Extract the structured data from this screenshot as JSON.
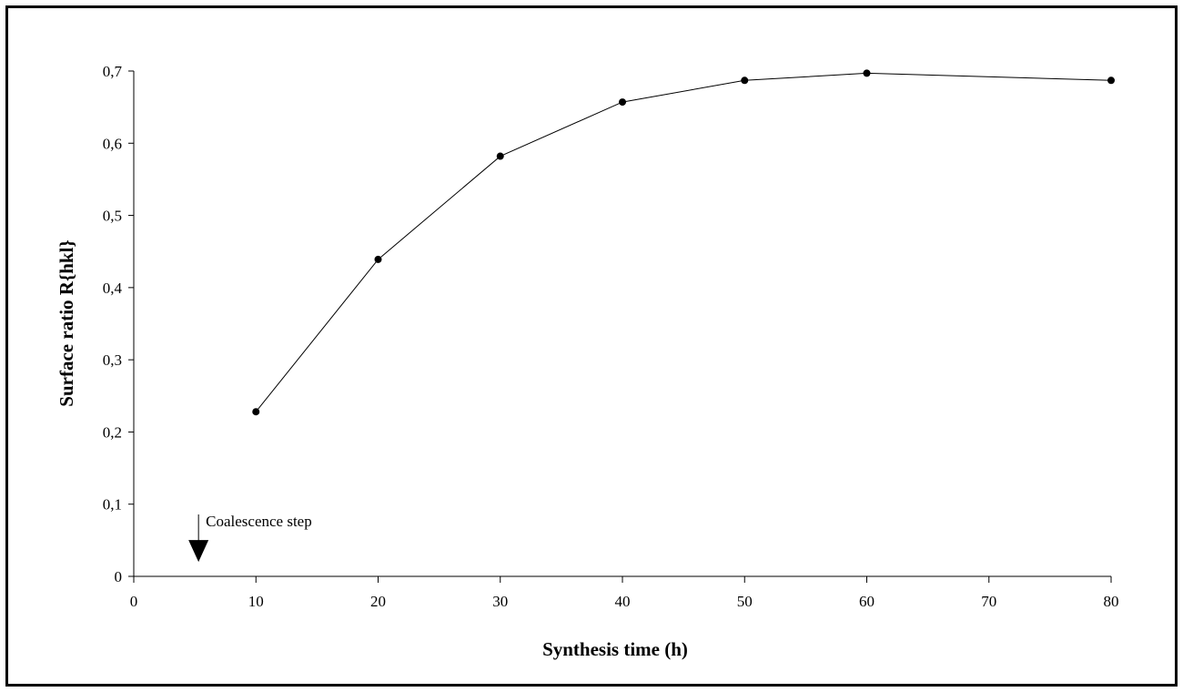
{
  "chart_data": {
    "type": "line",
    "x": [
      10,
      20,
      30,
      40,
      50,
      60,
      80
    ],
    "series": [
      {
        "values": [
          0.228,
          0.439,
          0.582,
          0.657,
          0.687,
          0.697,
          0.687
        ]
      }
    ],
    "x_ticks": [
      0,
      10,
      20,
      30,
      40,
      50,
      60,
      70,
      80
    ],
    "x_tick_labels": [
      "0",
      "10",
      "20",
      "30",
      "40",
      "50",
      "60",
      "70",
      "80"
    ],
    "y_ticks": [
      0,
      0.1,
      0.2,
      0.3,
      0.4,
      0.5,
      0.6,
      0.7
    ],
    "y_tick_labels": [
      "0",
      "0,1",
      "0,2",
      "0,3",
      "0,4",
      "0,5",
      "0,6",
      "0,7"
    ],
    "xlabel": "Synthesis time (h)",
    "ylabel": "Surface ratio R{hkl}",
    "xlim": [
      0,
      80
    ],
    "ylim": [
      0,
      0.7
    ],
    "grid": false,
    "annotations": [
      {
        "text": "Coalescence step",
        "x": 5.3,
        "y": 0.02,
        "marker": "arrow-down"
      }
    ],
    "colors": {
      "line": "#000000",
      "marker": "#000000"
    }
  }
}
